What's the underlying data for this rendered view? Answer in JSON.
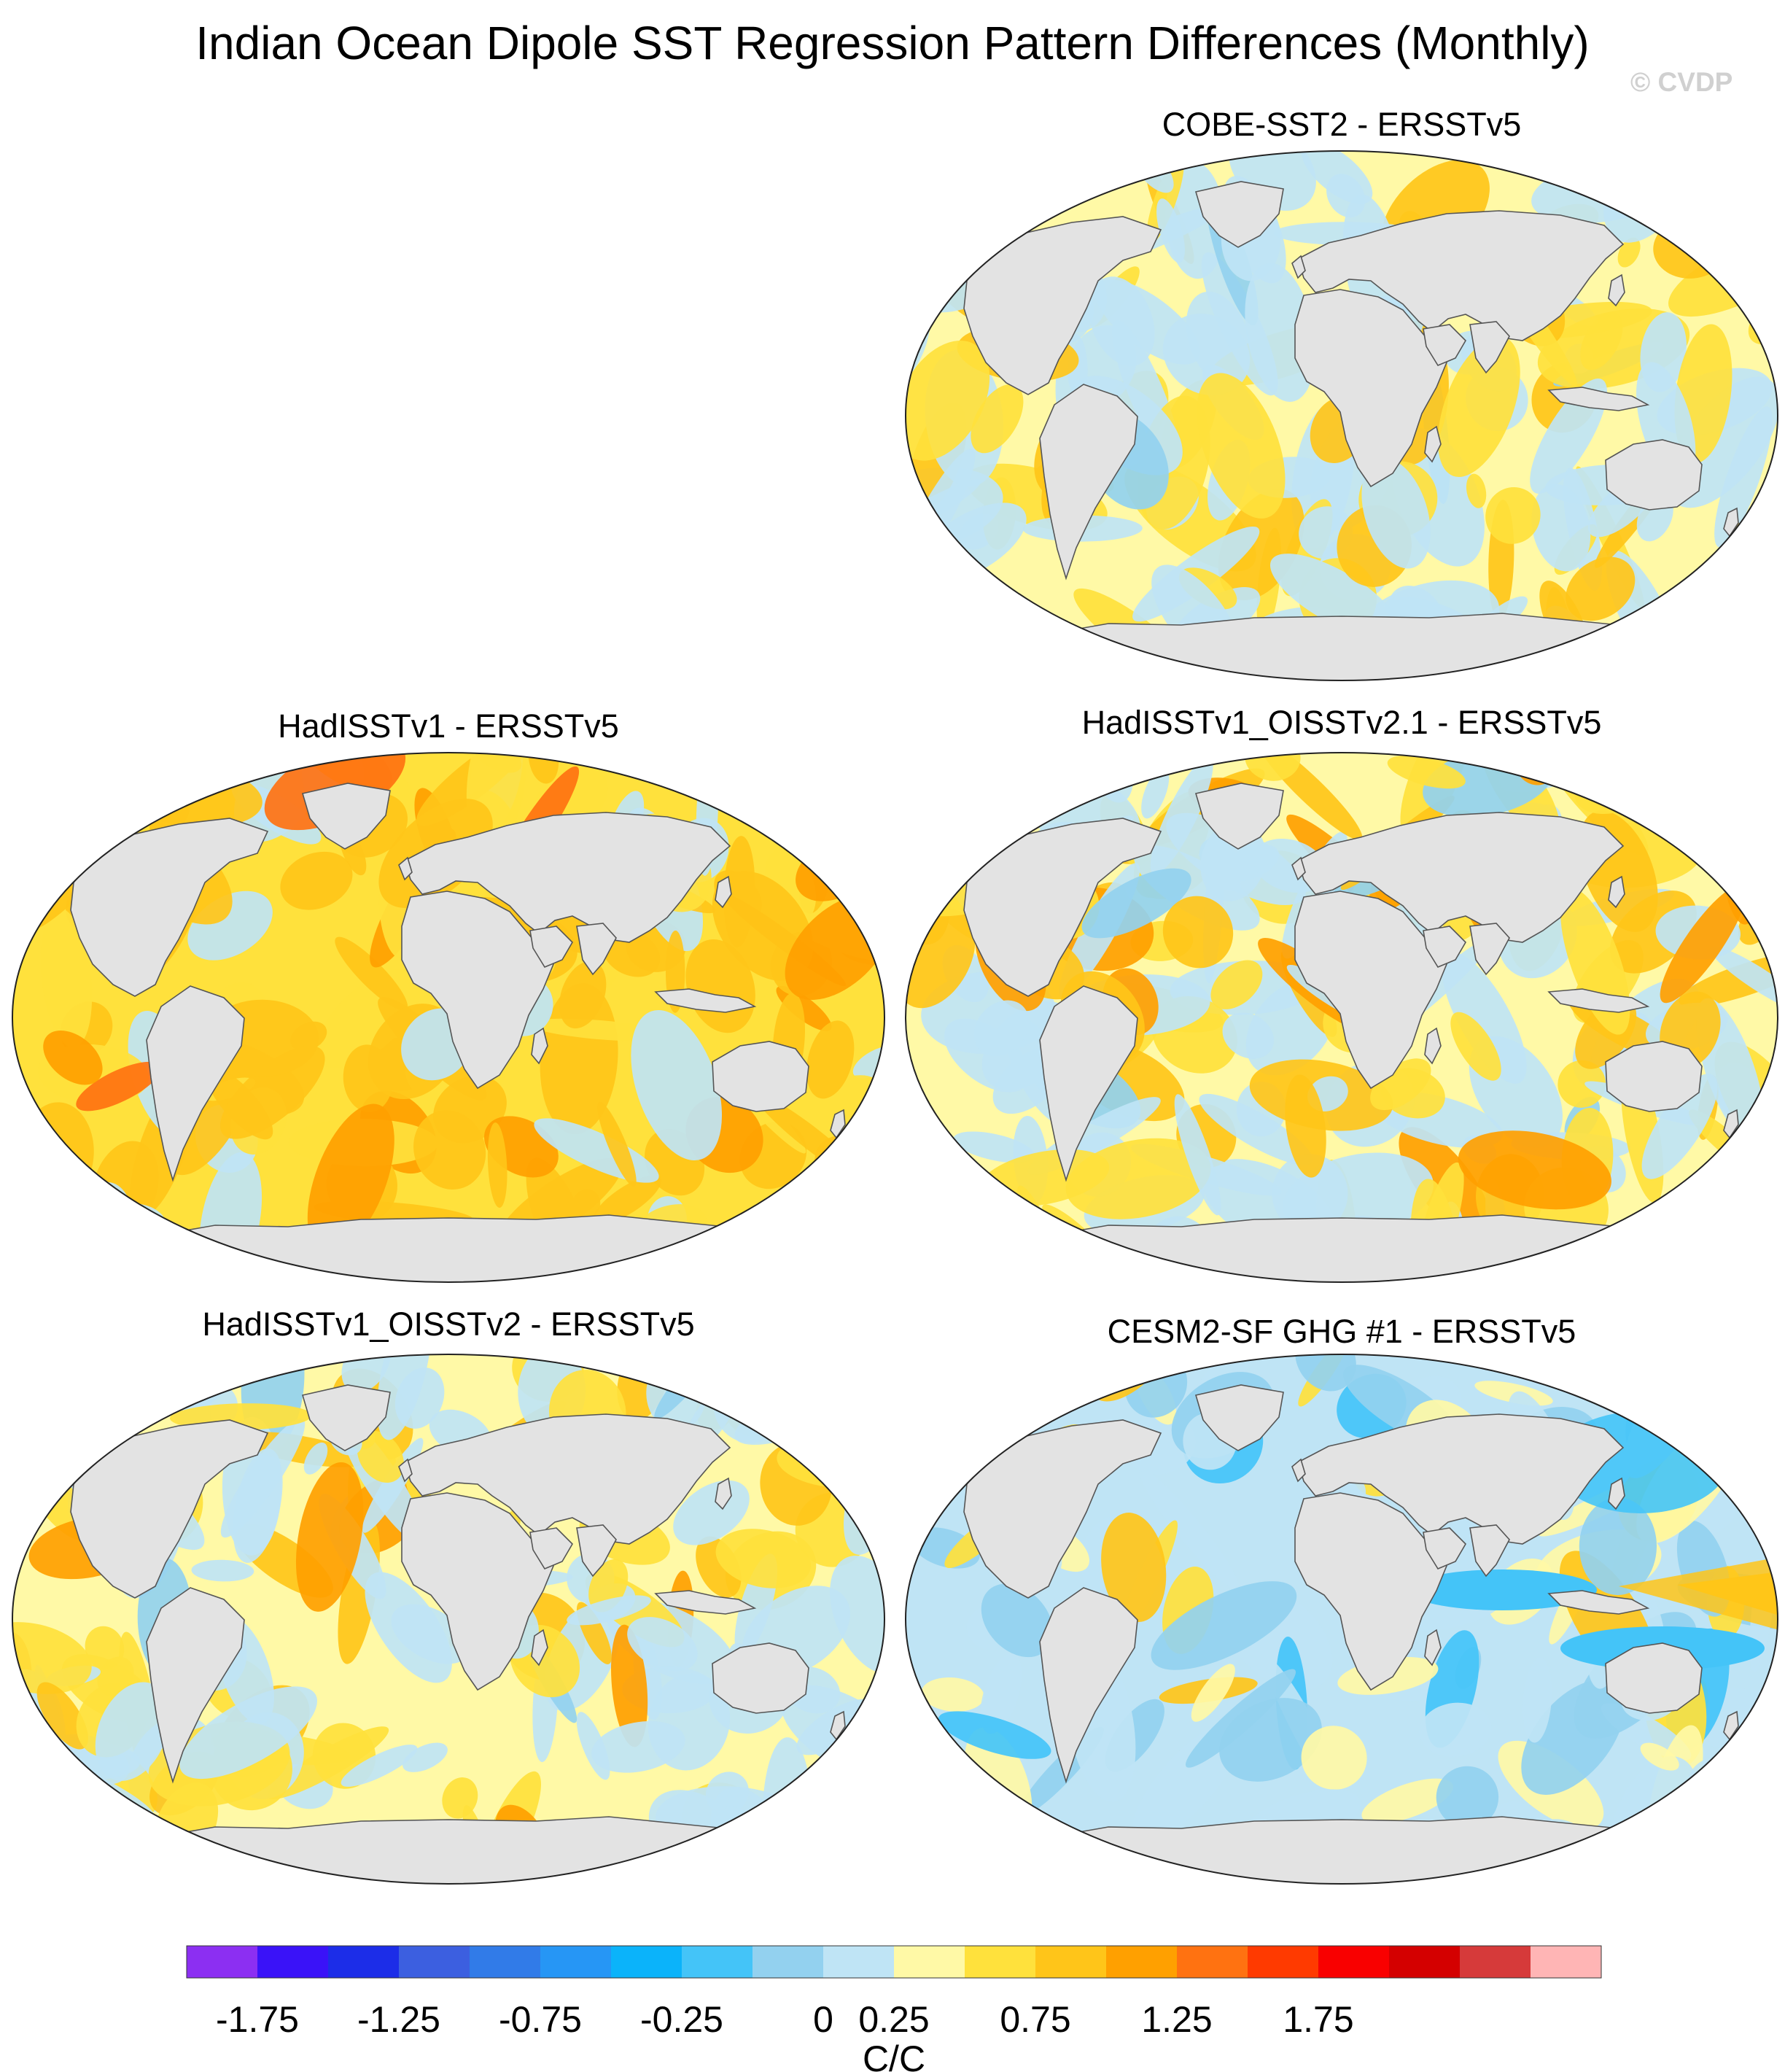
{
  "title": "Indian Ocean Dipole SST Regression Pattern Differences (Monthly)",
  "copyright": "© CVDP",
  "panels": [
    {
      "id": "p1",
      "title": "COBE-SST2 - ERSSTv5"
    },
    {
      "id": "p2",
      "title": "HadISSTv1 - ERSSTv5"
    },
    {
      "id": "p3",
      "title": "HadISSTv1_OISSTv2.1 - ERSSTv5"
    },
    {
      "id": "p4",
      "title": "HadISSTv1_OISSTv2 - ERSSTv5"
    },
    {
      "id": "p5",
      "title": "CESM2-SF GHG #1 - ERSSTv5"
    }
  ],
  "colorbar": {
    "units": "C/C",
    "colors": [
      "#8c2ff2",
      "#3a12f8",
      "#1c2de8",
      "#3c5fe0",
      "#317be8",
      "#2696f5",
      "#0bb3fa",
      "#44c4f8",
      "#93d1ef",
      "#bfe4f5",
      "#fff9a6",
      "#ffe13c",
      "#ffc519",
      "#ffa000",
      "#ff7211",
      "#ff3a00",
      "#f90000",
      "#d40000",
      "#d63a3a",
      "#ffb5b5"
    ],
    "tick_labels": [
      "-1.75",
      "-1.25",
      "-0.75",
      "-0.25",
      "0",
      "0.25",
      "0.75",
      "1.25",
      "1.75"
    ]
  }
}
